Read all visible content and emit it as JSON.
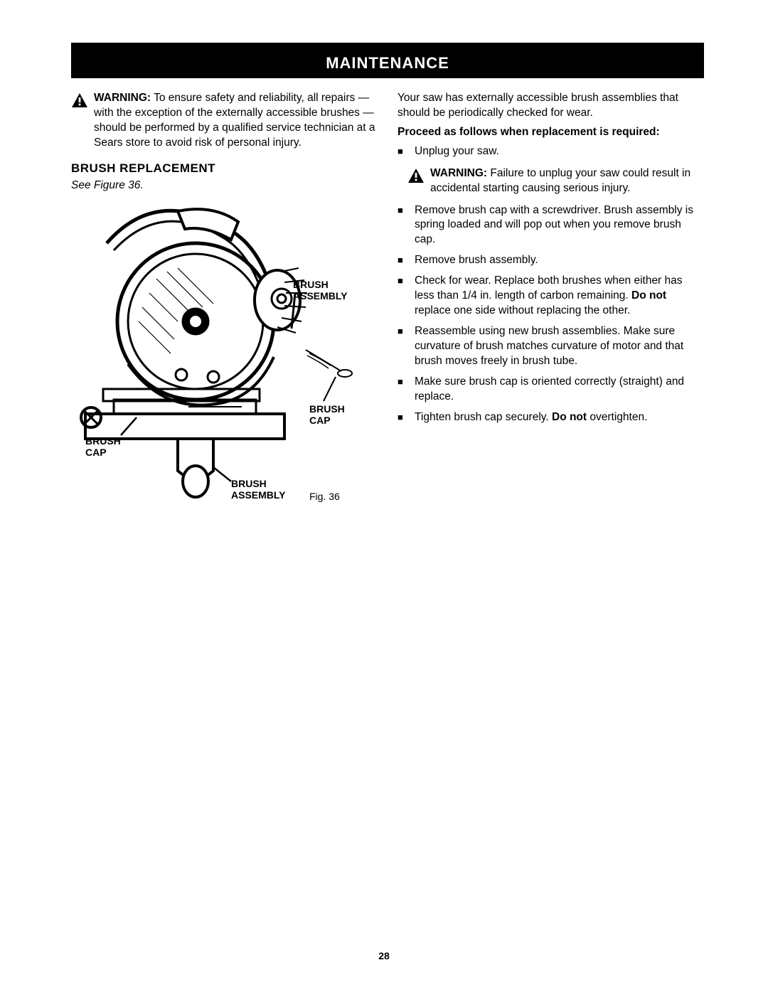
{
  "banner": "MAINTENANCE",
  "left": {
    "warning_label": "WARNING:",
    "warning_text": " To ensure safety and reliability, all repairs — with the exception of the externally accessible brushes — should be performed by a qualified service technician at a Sears store to avoid risk of personal injury.",
    "heading": "BRUSH REPLACEMENT",
    "see_figure": "See Figure 36.",
    "labels": {
      "brush_assembly_top": "BRUSH\nASSEMBLY",
      "brush_cap_right": "BRUSH\nCAP",
      "brush_cap_left": "BRUSH\nCAP",
      "brush_assembly_bottom": "BRUSH\nASSEMBLY",
      "fig": "Fig. 36"
    }
  },
  "right": {
    "intro": "Your saw has externally accessible brush assemblies that should be periodically checked for wear.",
    "proceed": "Proceed as follows when replacement is required:",
    "step_unplug": "Unplug your saw.",
    "warning_label": "WARNING:",
    "warning_text": " Failure to unplug your saw could result in accidental starting causing serious injury.",
    "steps": [
      "Remove brush cap with a screwdriver. Brush assembly is spring loaded and will pop out when you remove brush cap.",
      "Remove brush assembly.",
      "Check for wear. Replace both brushes when either has less than 1/4 in. length of carbon remaining. <b>Do not</b> replace one side without replacing the other.",
      "Reassemble using new brush assemblies. Make sure curvature of brush matches curvature of motor and that brush moves freely in brush tube.",
      "Make sure brush cap is oriented correctly (straight) and replace.",
      "Tighten brush cap securely. <b>Do not</b> overtighten."
    ]
  },
  "page_number": "28",
  "colors": {
    "ink": "#000000",
    "paper": "#ffffff"
  }
}
